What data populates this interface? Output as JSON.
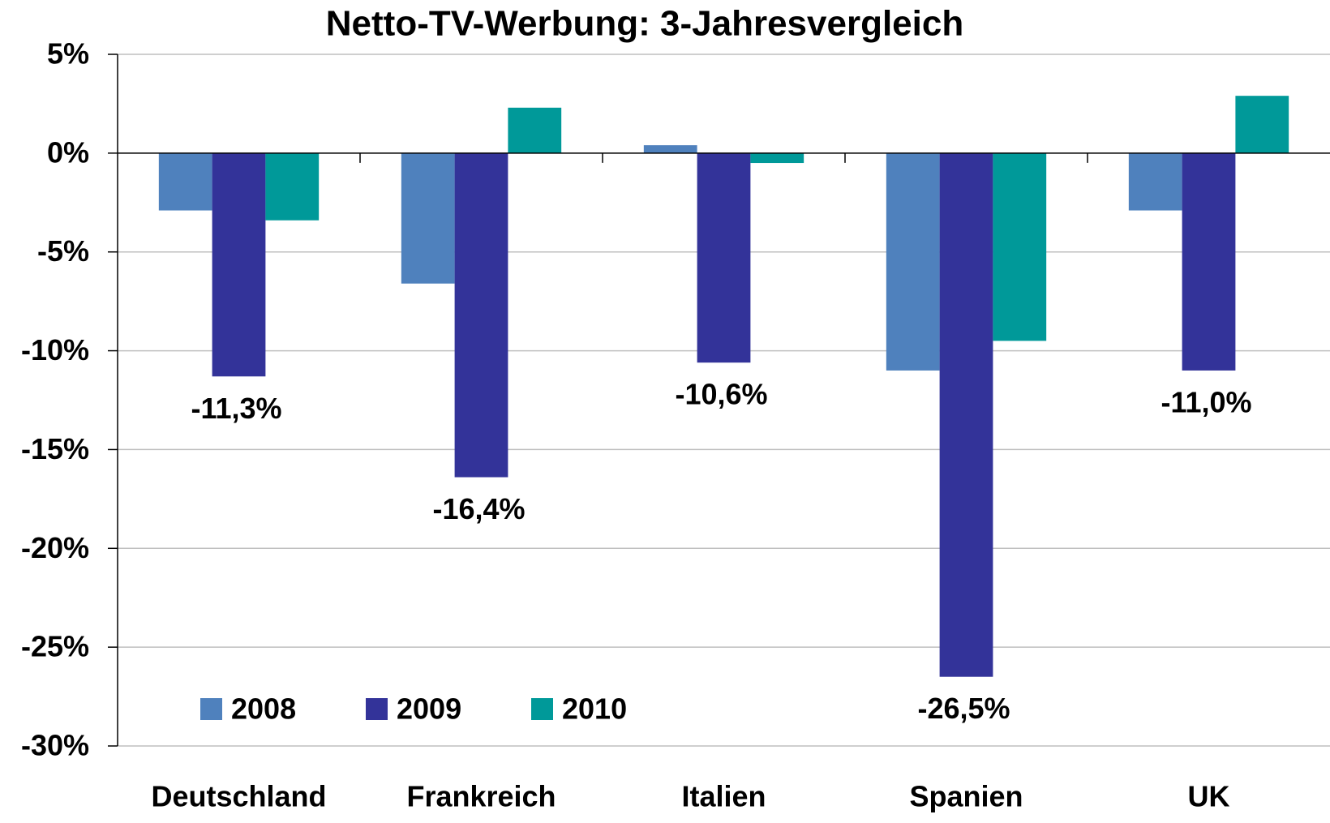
{
  "chart_data": {
    "type": "bar",
    "title": "Netto-TV-Werbung: 3-Jahresvergleich",
    "categories": [
      "Deutschland",
      "Frankreich",
      "Italien",
      "Spanien",
      "UK"
    ],
    "series": [
      {
        "name": "2008",
        "color": "#4f81bd",
        "values": [
          -2.9,
          -6.6,
          0.4,
          -11.0,
          -2.9
        ]
      },
      {
        "name": "2009",
        "color": "#333399",
        "values": [
          -11.3,
          -16.4,
          -10.6,
          -26.5,
          -11.0
        ],
        "value_labels": [
          "-11,3%",
          "-16,4%",
          "-10,6%",
          "-26,5%",
          "-11,0%"
        ]
      },
      {
        "name": "2010",
        "color": "#009999",
        "values": [
          -3.4,
          2.3,
          -0.5,
          -9.5,
          2.9
        ]
      }
    ],
    "ylim": [
      -30,
      5
    ],
    "yticks": [
      {
        "value": 5,
        "label": "5%"
      },
      {
        "value": 0,
        "label": "0%"
      },
      {
        "value": -5,
        "label": "-5%"
      },
      {
        "value": -10,
        "label": "-10%"
      },
      {
        "value": -15,
        "label": "-15%"
      },
      {
        "value": -20,
        "label": "-20%"
      },
      {
        "value": -25,
        "label": "-25%"
      },
      {
        "value": -30,
        "label": "-30%"
      }
    ],
    "grid": true,
    "legend": "lower left"
  }
}
